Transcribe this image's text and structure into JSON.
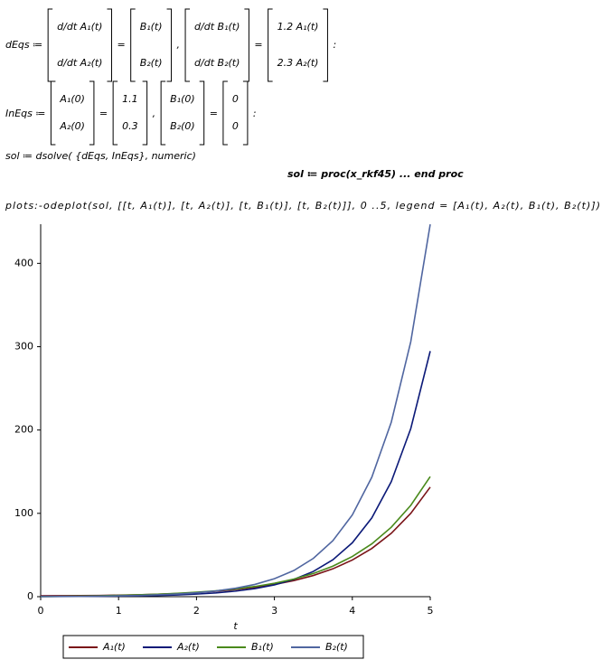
{
  "worksheet": {
    "lines": [
      [
        "dEqs ≔",
        [
          "d/dt A₁(t)",
          "d/dt A₂(t)"
        ],
        "=",
        [
          "B₁(t)",
          "B₂(t)"
        ],
        ",",
        [
          "d/dt B₁(t)",
          "d/dt B₂(t)"
        ],
        "=",
        [
          "1.2 A₁(t)",
          "2.3 A₂(t)"
        ],
        ":"
      ],
      [
        "InEqs ≔",
        [
          "A₁(0)",
          "A₂(0)"
        ],
        "=",
        [
          "1.1",
          "0.3"
        ],
        ",",
        [
          "B₁(0)",
          "B₂(0)"
        ],
        "=",
        [
          "0",
          "0"
        ],
        ":"
      ],
      [
        "sol ≔  dsolve( {dEqs, InEqs}, numeric)"
      ],
      [
        "sol ≔ proc(x_rkf45)  ...  end proc"
      ],
      [
        "plots:-odeplot(sol, [[t, A₁(t)], [t, A₂(t)], [t, B₁(t)], [t, B₂(t)]], 0 ..5, legend = [A₁(t), A₂(t), B₁(t), B₂(t)])"
      ]
    ]
  },
  "chart_data": {
    "type": "line",
    "x_label": "t",
    "x": [
      0,
      0.25,
      0.5,
      0.75,
      1,
      1.25,
      1.5,
      1.75,
      2,
      2.25,
      2.5,
      2.75,
      3,
      3.25,
      3.5,
      3.75,
      4,
      4.25,
      4.5,
      4.75,
      5
    ],
    "series": [
      {
        "name": "A₁(t)",
        "color": "#7a1418",
        "values": [
          1.1,
          1.14,
          1.27,
          1.49,
          1.83,
          2.31,
          2.94,
          3.81,
          4.98,
          6.52,
          8.54,
          11.22,
          14.72,
          19.36,
          25.44,
          33.45,
          43.99,
          57.85,
          76.08,
          100.0,
          131.5
        ]
      },
      {
        "name": "A₂(t)",
        "color": "#0c1a78",
        "values": [
          0.3,
          0.32,
          0.39,
          0.52,
          0.71,
          1.02,
          1.47,
          2.14,
          3.12,
          4.56,
          6.65,
          9.72,
          14.19,
          20.73,
          30.3,
          44.27,
          64.67,
          94.48,
          138.0,
          201.7,
          294.7
        ]
      },
      {
        "name": "B₁(t)",
        "color": "#4a8a1c",
        "values": [
          0,
          0.33,
          0.69,
          1.1,
          1.6,
          2.22,
          2.99,
          4.0,
          5.32,
          7.04,
          9.28,
          12.23,
          16.08,
          21.17,
          27.85,
          36.62,
          48.18,
          63.37,
          83.33,
          109.6,
          144.1
        ]
      },
      {
        "name": "B₂(t)",
        "color": "#5066a0",
        "values": [
          0,
          0.18,
          0.38,
          0.64,
          0.98,
          1.48,
          2.19,
          3.22,
          4.71,
          6.89,
          10.08,
          14.73,
          21.52,
          31.44,
          45.95,
          67.13,
          98.08,
          143.3,
          209.4,
          305.9,
          446.9
        ]
      }
    ],
    "xlim": [
      0,
      5
    ],
    "xticks": [
      0,
      1,
      2,
      3,
      4,
      5
    ],
    "ylim": [
      0,
      447
    ],
    "yticks": [
      0,
      100,
      200,
      300,
      400
    ]
  }
}
